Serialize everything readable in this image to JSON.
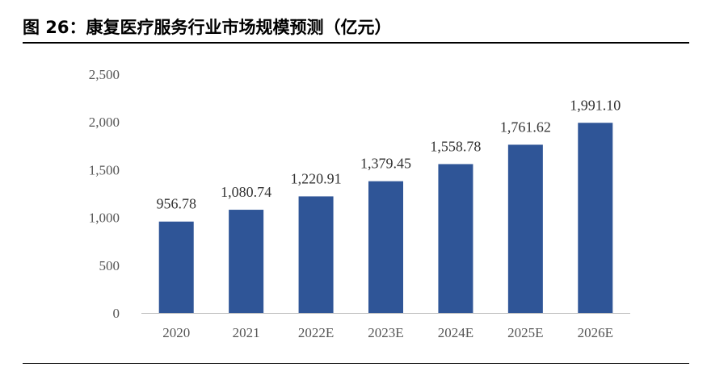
{
  "figure": {
    "title": "图 26：康复医疗服务行业市场规模预测（亿元）"
  },
  "chart_data": {
    "type": "bar",
    "title": "图 26：康复医疗服务行业市场规模预测（亿元）",
    "categories": [
      "2020",
      "2021",
      "2022E",
      "2023E",
      "2024E",
      "2025E",
      "2026E"
    ],
    "values": [
      956.78,
      1080.74,
      1220.91,
      1379.45,
      1558.78,
      1761.62,
      1991.1
    ],
    "value_labels": [
      "956.78",
      "1,080.74",
      "1,220.91",
      "1,379.45",
      "1,558.78",
      "1,761.62",
      "1,991.10"
    ],
    "yticks": [
      0,
      500,
      1000,
      1500,
      2000,
      2500
    ],
    "ytick_labels": [
      "0",
      "500",
      "1,000",
      "1,500",
      "2,000",
      "2,500"
    ],
    "ylim": [
      0,
      2500
    ],
    "xlabel": "",
    "ylabel": "",
    "grid": false,
    "legend": "none",
    "bar_color": "#2f5597",
    "axis_color": "#bfbfbf"
  }
}
